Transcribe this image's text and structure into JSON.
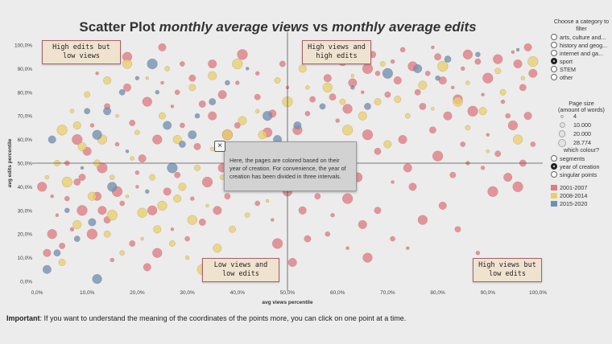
{
  "title": {
    "main": "Scatter Plot",
    "italic_a": "monthly average views",
    "vs": "vs",
    "italic_b": "monthly average edits"
  },
  "chart_data": {
    "type": "scatter",
    "xlabel": "avg views percentile",
    "ylabel": "avg edits percentile",
    "xlim": [
      0,
      100
    ],
    "ylim": [
      0,
      100
    ],
    "x_ticks": [
      "0,0%",
      "10,0%",
      "20,0%",
      "30,0%",
      "40,0%",
      "50,0%",
      "60,0%",
      "70,0%",
      "80,0%",
      "90,0%",
      "100,0%"
    ],
    "y_ticks": [
      "0,0%",
      "10,0%",
      "20,0%",
      "30,0%",
      "40,0%",
      "50,0%",
      "60,0%",
      "70,0%",
      "80,0%",
      "90,0%",
      "100,0%"
    ],
    "reference_lines": {
      "x": 50,
      "y": 50
    },
    "series": [
      {
        "name": "2001-2007",
        "color": "#e07b83",
        "points": [
          [
            95,
            97
          ],
          [
            92,
            94
          ],
          [
            98,
            99
          ],
          [
            88,
            93
          ],
          [
            85,
            90
          ],
          [
            90,
            86
          ],
          [
            96,
            92
          ],
          [
            80,
            95
          ],
          [
            78,
            88
          ],
          [
            83,
            82
          ],
          [
            75,
            91
          ],
          [
            72,
            85
          ],
          [
            70,
            79
          ],
          [
            93,
            76
          ],
          [
            87,
            72
          ],
          [
            82,
            70
          ],
          [
            77,
            74
          ],
          [
            68,
            88
          ],
          [
            65,
            80
          ],
          [
            62,
            73
          ],
          [
            58,
            86
          ],
          [
            55,
            77
          ],
          [
            60,
            68
          ],
          [
            66,
            62
          ],
          [
            73,
            60
          ],
          [
            79,
            64
          ],
          [
            85,
            58
          ],
          [
            90,
            62
          ],
          [
            95,
            66
          ],
          [
            98,
            70
          ],
          [
            92,
            54
          ],
          [
            86,
            50
          ],
          [
            80,
            53
          ],
          [
            74,
            48
          ],
          [
            68,
            55
          ],
          [
            63,
            50
          ],
          [
            57,
            57
          ],
          [
            52,
            64
          ],
          [
            47,
            71
          ],
          [
            44,
            78
          ],
          [
            40,
            84
          ],
          [
            38,
            62
          ],
          [
            35,
            70
          ],
          [
            32,
            57
          ],
          [
            29,
            66
          ],
          [
            27,
            74
          ],
          [
            24,
            60
          ],
          [
            21,
            52
          ],
          [
            19,
            67
          ],
          [
            16,
            58
          ],
          [
            13,
            48
          ],
          [
            10,
            55
          ],
          [
            8,
            42
          ],
          [
            6,
            35
          ],
          [
            4,
            28
          ],
          [
            3,
            20
          ],
          [
            2,
            12
          ],
          [
            5,
            15
          ],
          [
            7,
            22
          ],
          [
            9,
            30
          ],
          [
            12,
            36
          ],
          [
            14,
            26
          ],
          [
            17,
            33
          ],
          [
            20,
            40
          ],
          [
            23,
            30
          ],
          [
            26,
            38
          ],
          [
            28,
            45
          ],
          [
            31,
            35
          ],
          [
            34,
            42
          ],
          [
            37,
            48
          ],
          [
            33,
            25
          ],
          [
            30,
            18
          ],
          [
            27,
            22
          ],
          [
            24,
            12
          ],
          [
            22,
            6
          ],
          [
            19,
            16
          ],
          [
            15,
            9
          ],
          [
            11,
            20
          ],
          [
            36,
            30
          ],
          [
            41,
            40
          ],
          [
            44,
            33
          ],
          [
            47,
            26
          ],
          [
            50,
            38
          ],
          [
            53,
            30
          ],
          [
            56,
            36
          ],
          [
            59,
            28
          ],
          [
            62,
            35
          ],
          [
            65,
            24
          ],
          [
            68,
            30
          ],
          [
            71,
            18
          ],
          [
            74,
            14
          ],
          [
            77,
            26
          ],
          [
            81,
            32
          ],
          [
            84,
            22
          ],
          [
            88,
            12
          ],
          [
            91,
            38
          ],
          [
            94,
            44
          ],
          [
            97,
            50
          ],
          [
            99,
            58
          ],
          [
            71,
            42
          ],
          [
            64,
            44
          ],
          [
            57,
            45
          ],
          [
            46,
            52
          ],
          [
            43,
            58
          ],
          [
            39,
            54
          ],
          [
            35,
            92
          ],
          [
            31,
            86
          ],
          [
            28,
            80
          ],
          [
            25,
            84
          ],
          [
            22,
            76
          ],
          [
            18,
            82
          ],
          [
            14,
            74
          ],
          [
            11,
            66
          ],
          [
            8,
            60
          ],
          [
            61,
            93
          ],
          [
            67,
            96
          ],
          [
            73,
            98
          ],
          [
            79,
            99
          ],
          [
            86,
            96
          ],
          [
            55,
            95
          ],
          [
            49,
            92
          ],
          [
            44,
            88
          ],
          [
            41,
            96
          ],
          [
            37,
            79
          ],
          [
            33,
            75
          ],
          [
            29,
            92
          ],
          [
            12,
            88
          ],
          [
            18,
            95
          ],
          [
            25,
            99
          ],
          [
            40,
            66
          ],
          [
            45,
            45
          ],
          [
            48,
            16
          ],
          [
            51,
            8
          ],
          [
            54,
            18
          ],
          [
            58,
            20
          ],
          [
            62,
            14
          ],
          [
            66,
            10
          ],
          [
            75,
            40
          ],
          [
            83,
            45
          ],
          [
            89,
            48
          ],
          [
            96,
            40
          ],
          [
            99,
            88
          ],
          [
            97,
            82
          ],
          [
            94,
            70
          ],
          [
            89,
            79
          ],
          [
            84,
            77
          ],
          [
            81,
            85
          ],
          [
            76,
            80
          ],
          [
            71,
            93
          ],
          [
            66,
            90
          ],
          [
            63,
            84
          ],
          [
            59,
            78
          ],
          [
            54,
            71
          ],
          [
            50,
            82
          ],
          [
            46,
            63
          ],
          [
            42,
            46
          ],
          [
            38,
            36
          ],
          [
            20,
            46
          ],
          [
            16,
            38
          ],
          [
            13,
            30
          ],
          [
            9,
            44
          ],
          [
            6,
            50
          ],
          [
            3,
            36
          ],
          [
            1,
            40
          ]
        ]
      },
      {
        "name": "2008-2014",
        "color": "#e9cf6b",
        "points": [
          [
            92,
            89
          ],
          [
            86,
            84
          ],
          [
            81,
            91
          ],
          [
            77,
            83
          ],
          [
            72,
            77
          ],
          [
            69,
            92
          ],
          [
            63,
            87
          ],
          [
            58,
            82
          ],
          [
            53,
            90
          ],
          [
            48,
            85
          ],
          [
            44,
            72
          ],
          [
            40,
            92
          ],
          [
            35,
            87
          ],
          [
            31,
            82
          ],
          [
            26,
            90
          ],
          [
            22,
            86
          ],
          [
            18,
            92
          ],
          [
            14,
            85
          ],
          [
            10,
            79
          ],
          [
            7,
            72
          ],
          [
            5,
            64
          ],
          [
            9,
            57
          ],
          [
            12,
            50
          ],
          [
            15,
            44
          ],
          [
            18,
            36
          ],
          [
            21,
            29
          ],
          [
            24,
            22
          ],
          [
            27,
            16
          ],
          [
            30,
            10
          ],
          [
            33,
            5
          ],
          [
            36,
            14
          ],
          [
            39,
            22
          ],
          [
            42,
            28
          ],
          [
            46,
            34
          ],
          [
            49,
            41
          ],
          [
            52,
            47
          ],
          [
            55,
            52
          ],
          [
            58,
            58
          ],
          [
            62,
            64
          ],
          [
            65,
            70
          ],
          [
            68,
            76
          ],
          [
            74,
            70
          ],
          [
            79,
            73
          ],
          [
            84,
            76
          ],
          [
            89,
            72
          ],
          [
            93,
            80
          ],
          [
            97,
            86
          ],
          [
            99,
            93
          ],
          [
            28,
            60
          ],
          [
            25,
            70
          ],
          [
            20,
            63
          ],
          [
            16,
            70
          ],
          [
            13,
            60
          ],
          [
            8,
            66
          ],
          [
            4,
            50
          ],
          [
            2,
            44
          ],
          [
            6,
            42
          ],
          [
            11,
            36
          ],
          [
            14,
            20
          ],
          [
            17,
            12
          ],
          [
            21,
            18
          ],
          [
            25,
            32
          ],
          [
            29,
            40
          ],
          [
            32,
            48
          ],
          [
            35,
            56
          ],
          [
            38,
            62
          ],
          [
            41,
            68
          ],
          [
            43,
            54
          ],
          [
            37,
            44
          ],
          [
            34,
            32
          ],
          [
            31,
            26
          ],
          [
            28,
            35
          ],
          [
            23,
            44
          ],
          [
            19,
            52
          ],
          [
            15,
            28
          ],
          [
            8,
            24
          ],
          [
            5,
            8
          ],
          [
            86,
            65
          ],
          [
            90,
            55
          ],
          [
            96,
            60
          ],
          [
            70,
            58
          ],
          [
            61,
            76
          ],
          [
            54,
            82
          ],
          [
            50,
            76
          ],
          [
            45,
            62
          ]
        ]
      },
      {
        "name": "2015-2020",
        "color": "#6f8fb3",
        "points": [
          [
            2,
            5
          ],
          [
            4,
            12
          ],
          [
            6,
            30
          ],
          [
            9,
            48
          ],
          [
            12,
            62
          ],
          [
            14,
            72
          ],
          [
            17,
            80
          ],
          [
            20,
            86
          ],
          [
            23,
            92
          ],
          [
            26,
            66
          ],
          [
            29,
            58
          ],
          [
            32,
            70
          ],
          [
            18,
            55
          ],
          [
            15,
            40
          ],
          [
            11,
            25
          ],
          [
            8,
            18
          ],
          [
            22,
            38
          ],
          [
            27,
            48
          ],
          [
            31,
            62
          ],
          [
            35,
            76
          ],
          [
            38,
            84
          ],
          [
            42,
            90
          ],
          [
            46,
            70
          ],
          [
            52,
            66
          ],
          [
            57,
            74
          ],
          [
            63,
            82
          ],
          [
            70,
            88
          ],
          [
            76,
            90
          ],
          [
            82,
            94
          ],
          [
            88,
            96
          ],
          [
            96,
            98
          ],
          [
            12,
            1
          ],
          [
            3,
            60
          ],
          [
            10,
            72
          ],
          [
            24,
            80
          ],
          [
            40,
            55
          ],
          [
            48,
            60
          ],
          [
            66,
            74
          ],
          [
            80,
            86
          ]
        ]
      }
    ]
  },
  "quadrants": {
    "top_left": "High edits but low views",
    "top_right": "High views and high edits",
    "bottom_left": "Low views and low edits",
    "bottom_right": "High views but low edits"
  },
  "tooltip": {
    "close": "×",
    "text": "Here, the pages are colored based on their year of creation. For convenience, the year of creation has been divided in three intervals."
  },
  "filter": {
    "title": "Choose a category to filter",
    "options": [
      "arts, culture and...",
      "history and geog...",
      "internet and ga...",
      "sport",
      "STEM",
      "other"
    ],
    "selected": "sport"
  },
  "size_legend": {
    "title": "Page size",
    "subtitle": "(amount of words)",
    "items": [
      "4",
      "10.000",
      "20.000",
      "28.774"
    ]
  },
  "colour_choice": {
    "title": "which colour?",
    "options": [
      "segments",
      "year of creation",
      "singular points"
    ],
    "selected": "year of creation"
  },
  "colour_legend": [
    {
      "label": "2001-2007",
      "color": "#e07b83"
    },
    {
      "label": "2008-2014",
      "color": "#e9cf6b"
    },
    {
      "label": "2015-2020",
      "color": "#6f8fb3"
    }
  ],
  "footer": {
    "bold": "Important",
    "text": ": If you want to understand the meaning of the coordinates of the points more, you can click on one point at a time."
  }
}
